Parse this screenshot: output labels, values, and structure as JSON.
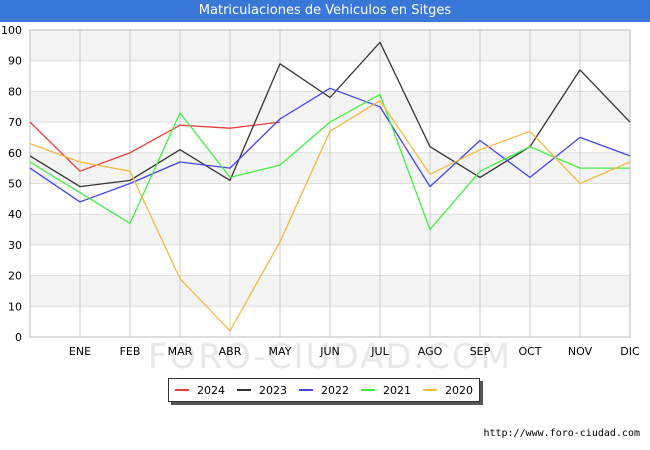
{
  "header": {
    "title": "Matriculaciones de Vehiculos en Sitges"
  },
  "footer": {
    "url": "http://www.foro-ciudad.com"
  },
  "watermark": "FORO-CIUDAD.COM",
  "chart_data": {
    "type": "line",
    "title": "Matriculaciones de Vehiculos en Sitges",
    "categories": [
      "",
      "ENE",
      "FEB",
      "MAR",
      "ABR",
      "MAY",
      "JUN",
      "JUL",
      "AGO",
      "SEP",
      "OCT",
      "NOV",
      "DIC"
    ],
    "ylim": [
      0,
      100
    ],
    "yticks": [
      0,
      10,
      20,
      30,
      40,
      50,
      60,
      70,
      80,
      90,
      100
    ],
    "grid": true,
    "legend_position": "bottom",
    "series": [
      {
        "name": "2024",
        "color": "#ee3b3b",
        "values": [
          70,
          54,
          60,
          69,
          68,
          70,
          null,
          null,
          null,
          null,
          null,
          null,
          null
        ]
      },
      {
        "name": "2023",
        "color": "#333333",
        "values": [
          59,
          49,
          51,
          61,
          51,
          89,
          78,
          96,
          62,
          52,
          62,
          87,
          70
        ]
      },
      {
        "name": "2022",
        "color": "#4444ee",
        "values": [
          55,
          44,
          50,
          57,
          55,
          71,
          81,
          75,
          49,
          64,
          52,
          65,
          59
        ]
      },
      {
        "name": "2021",
        "color": "#44ee44",
        "values": [
          57,
          47,
          37,
          73,
          52,
          56,
          70,
          79,
          35,
          54,
          62,
          55,
          55
        ]
      },
      {
        "name": "2020",
        "color": "#f5b942",
        "values": [
          63,
          57,
          54,
          19,
          2,
          31,
          67,
          77,
          53,
          61,
          67,
          50,
          57
        ]
      }
    ]
  }
}
